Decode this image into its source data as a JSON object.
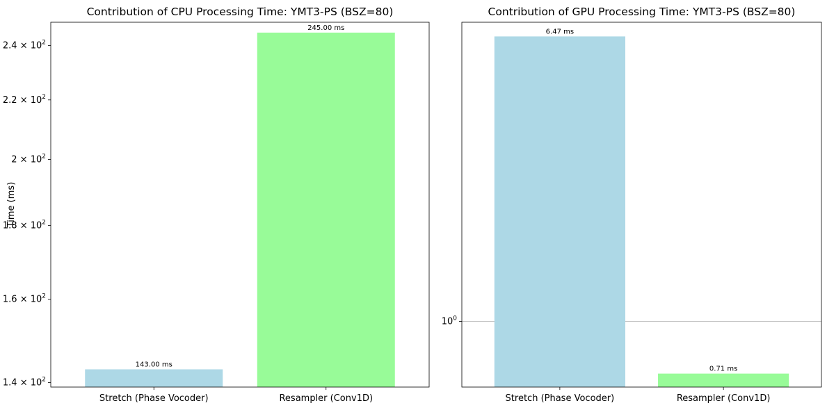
{
  "chart_data": [
    {
      "type": "bar",
      "title": "Contribution of CPU Processing Time: YMT3-PS (BSZ=80)",
      "ylabel": "Time (ms)",
      "yscale": "log",
      "ylim": [
        139,
        249.1
      ],
      "categories": [
        "Stretch (Phase Vocoder)",
        "Resampler (Conv1D)"
      ],
      "values": [
        143.0,
        245.0
      ],
      "data_labels": [
        "143.00 ms",
        "245.00 ms"
      ],
      "bar_colors": [
        "#add8e6",
        "#98fb98"
      ],
      "yticks": [
        {
          "value": 140,
          "base": "1.4 × 10",
          "exp": "2"
        },
        {
          "value": 160,
          "base": "1.6 × 10",
          "exp": "2"
        },
        {
          "value": 180,
          "base": "1.8 × 10",
          "exp": "2"
        },
        {
          "value": 200,
          "base": "2 × 10",
          "exp": "2"
        },
        {
          "value": 220,
          "base": "2.2 × 10",
          "exp": "2"
        },
        {
          "value": 240,
          "base": "2.4 × 10",
          "exp": "2"
        }
      ],
      "grid_lines": []
    },
    {
      "type": "bar",
      "title": "Contribution of GPU Processing Time: YMT3-PS (BSZ=80)",
      "ylabel": "",
      "yscale": "log",
      "ylim": [
        0.65,
        7.1
      ],
      "categories": [
        "Stretch (Phase Vocoder)",
        "Resampler (Conv1D)"
      ],
      "values": [
        6.47,
        0.71
      ],
      "data_labels": [
        "6.47 ms",
        "0.71 ms"
      ],
      "bar_colors": [
        "#add8e6",
        "#98fb98"
      ],
      "yticks": [
        {
          "value": 1,
          "base": "10",
          "exp": "0"
        }
      ],
      "grid_lines": [
        1
      ]
    }
  ]
}
